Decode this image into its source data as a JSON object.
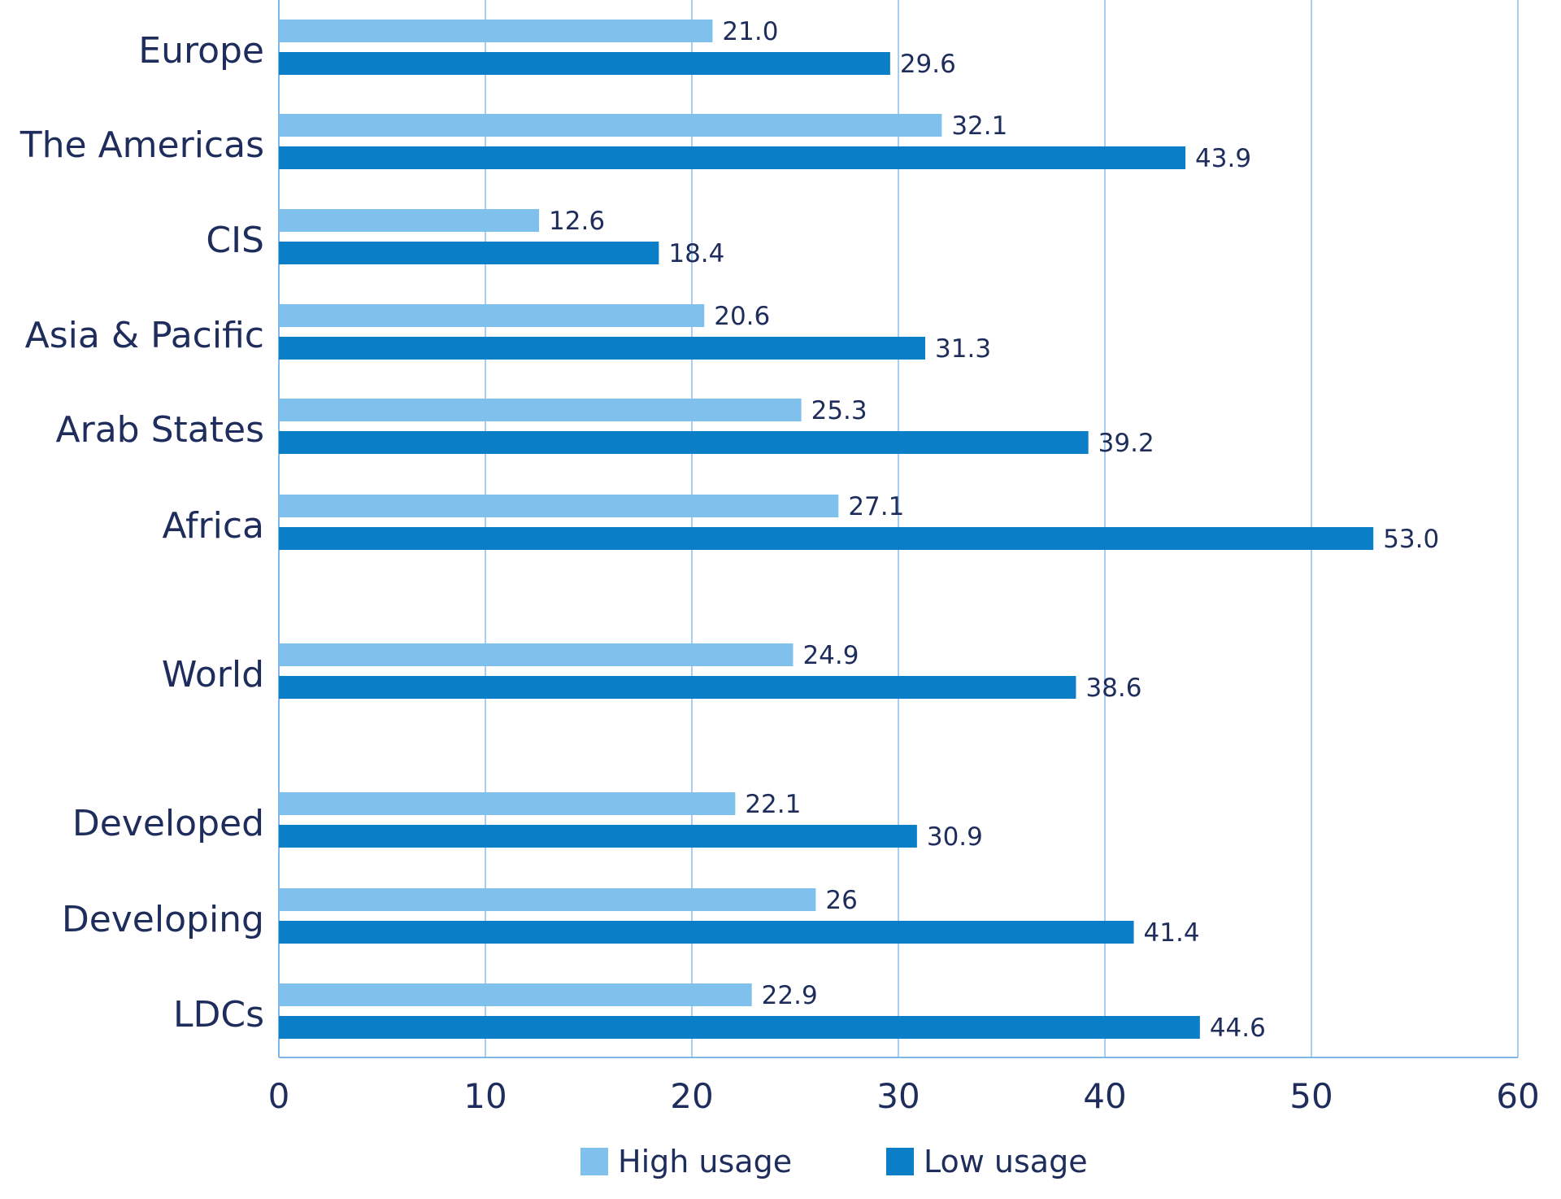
{
  "chart_data": {
    "type": "bar",
    "orientation": "horizontal",
    "categories": [
      "Europe",
      "The Americas",
      "CIS",
      "Asia & Pacific",
      "Arab States",
      "Africa",
      "World",
      "Developed",
      "Developing",
      "LDCs"
    ],
    "series": [
      {
        "name": "High usage",
        "color": "#7fc1ec",
        "values": [
          21.0,
          32.1,
          12.6,
          20.6,
          25.3,
          27.1,
          24.9,
          22.1,
          26,
          22.9
        ],
        "labels": [
          "21.0",
          "32.1",
          "12.6",
          "20.6",
          "25.3",
          "27.1",
          "24.9",
          "22.1",
          "26",
          "22.9"
        ]
      },
      {
        "name": "Low usage",
        "color": "#0a7fc8",
        "values": [
          29.6,
          43.9,
          18.4,
          31.3,
          39.2,
          53.0,
          38.6,
          30.9,
          41.4,
          44.6
        ],
        "labels": [
          "29.6",
          "43.9",
          "18.4",
          "31.3",
          "39.2",
          "53.0",
          "38.6",
          "30.9",
          "41.4",
          "44.6"
        ]
      }
    ],
    "xlim": [
      0,
      60
    ],
    "xticks": [
      "0",
      "10",
      "20",
      "30",
      "40",
      "50",
      "60"
    ],
    "title": "",
    "xlabel": "",
    "ylabel": "",
    "grid": "vertical",
    "legend_position": "bottom"
  }
}
